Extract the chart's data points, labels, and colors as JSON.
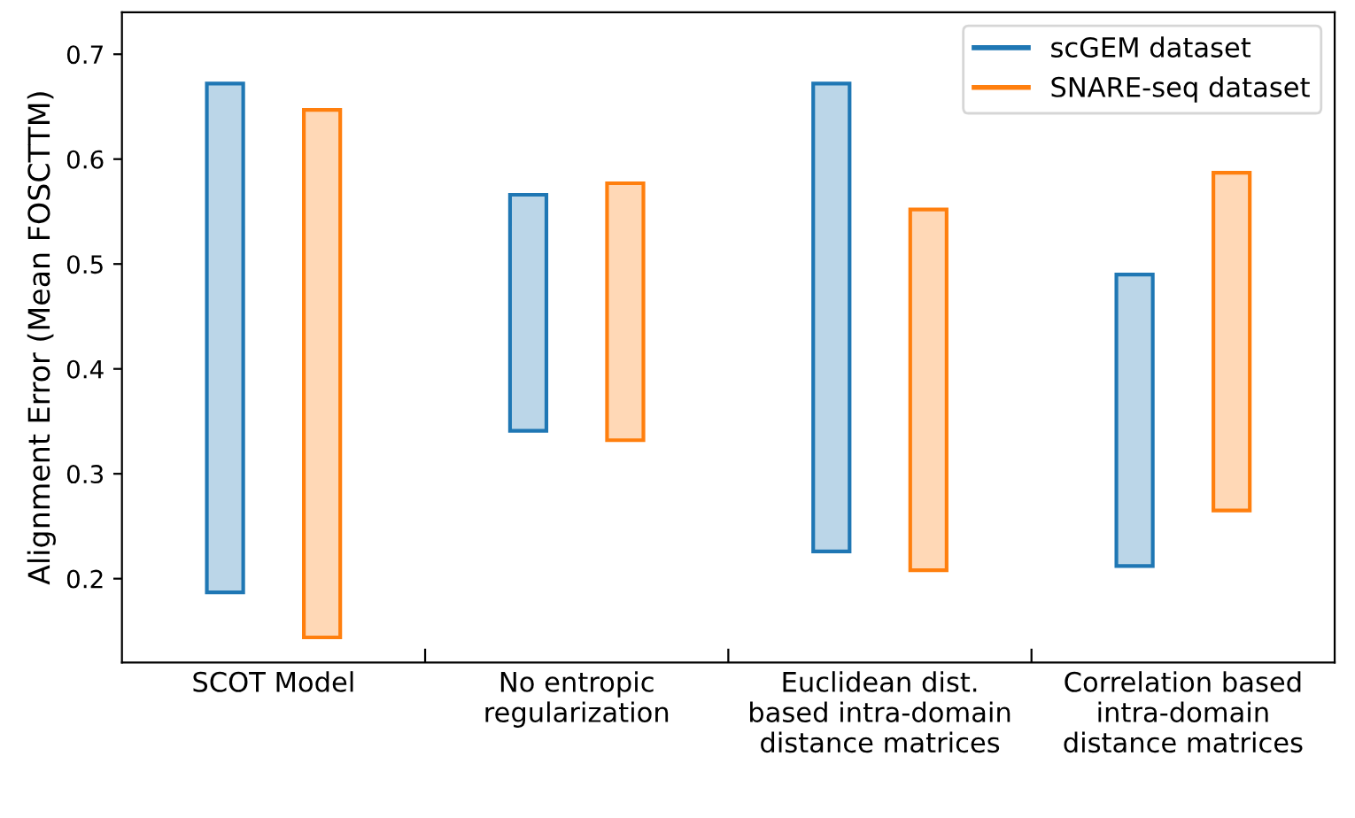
{
  "chart_data": {
    "type": "bar",
    "ylabel": "Alignment Error (Mean FOSCTTM)",
    "categories": [
      "SCOT Model",
      "No entropic\nregularization",
      "Euclidean dist.\nbased intra-domain\ndistance matrices",
      "Correlation based\nintra-domain\ndistance matrices"
    ],
    "series": [
      {
        "name": "scGEM dataset",
        "color": "#1f77b4",
        "base": [
          0.187,
          0.341,
          0.226,
          0.212
        ],
        "values": [
          0.485,
          0.225,
          0.446,
          0.278
        ]
      },
      {
        "name": "SNARE-seq dataset",
        "color": "#ff7f0e",
        "base": [
          0.144,
          0.332,
          0.208,
          0.265
        ],
        "values": [
          0.503,
          0.245,
          0.344,
          0.322
        ]
      }
    ],
    "ylim": [
      0.12,
      0.74
    ],
    "yticks": [
      0.2,
      0.3,
      0.4,
      0.5,
      0.6,
      0.7
    ],
    "legend": "top right",
    "grid": false
  }
}
